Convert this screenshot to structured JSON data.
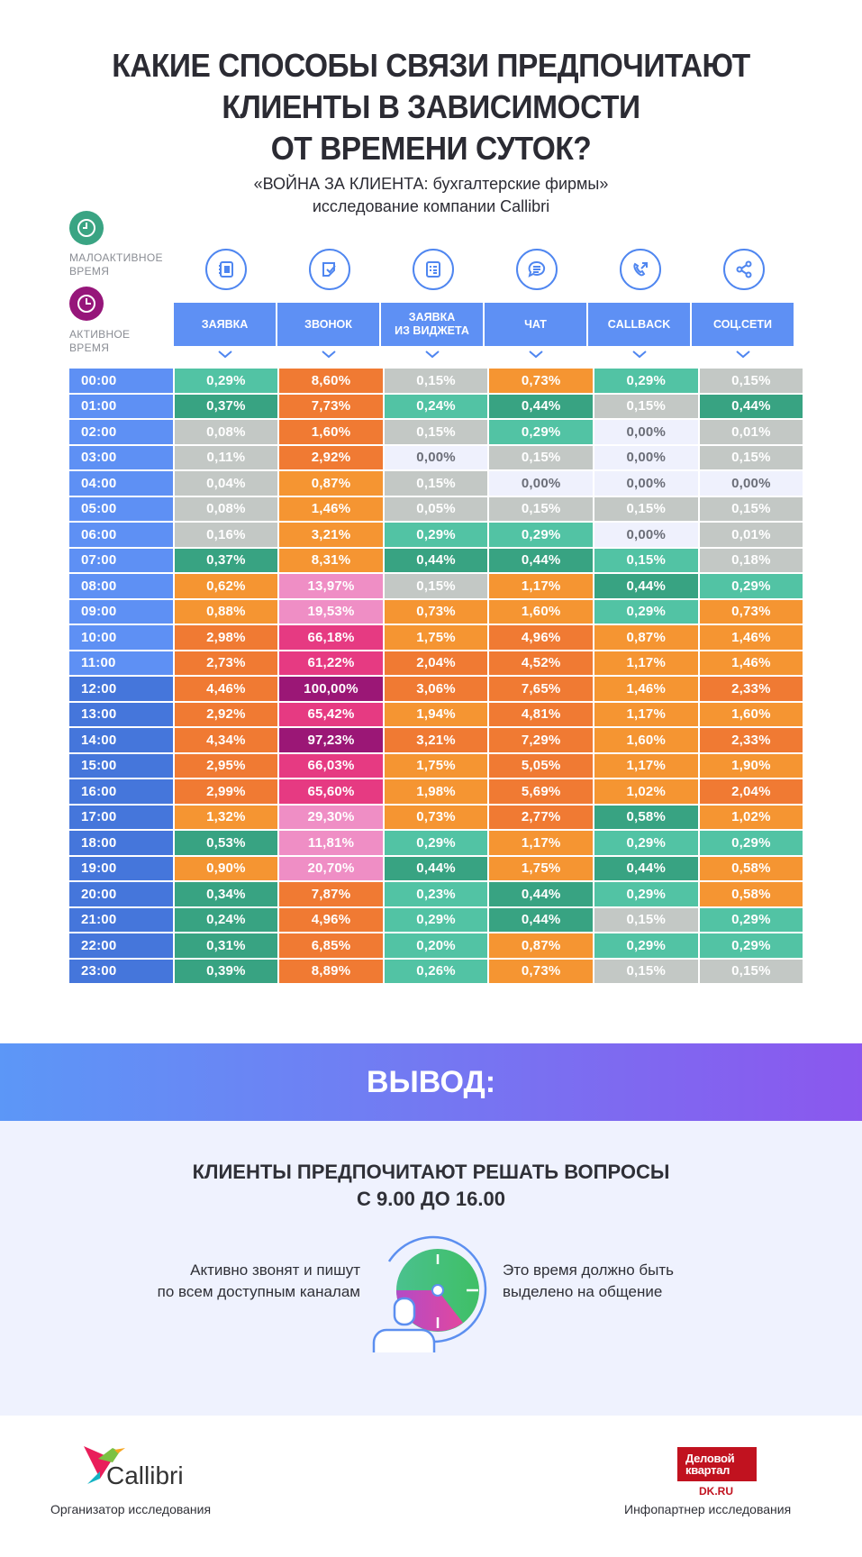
{
  "header": {
    "title_lines": [
      "КАКИЕ СПОСОБЫ СВЯЗИ ПРЕДПОЧИТАЮТ",
      "КЛИЕНТЫ  В ЗАВИСИМОСТИ",
      "ОТ ВРЕМЕНИ СУТОК?"
    ],
    "subtitle_lines": [
      "«ВОЙНА ЗА КЛИЕНТА: бухгалтерские фирмы»",
      "исследование компании Callibri"
    ]
  },
  "legend": {
    "low": {
      "label_lines": [
        "МАЛОАКТИВНОЕ",
        "ВРЕМЯ"
      ],
      "icon": "clock-icon",
      "color": "#3aa483"
    },
    "high": {
      "label_lines": [
        "АКТИВНОЕ",
        "ВРЕМЯ"
      ],
      "icon": "clock-icon",
      "color": "#96167a"
    }
  },
  "columns": [
    {
      "label": "ЗАЯВКА",
      "icon": "form-icon"
    },
    {
      "label": "ЗВОНОК",
      "icon": "call-note-icon"
    },
    {
      "label": "ЗАЯВКА\nИЗ ВИДЖЕТА",
      "icon": "widget-list-icon"
    },
    {
      "label": "ЧАТ",
      "icon": "chat-icon"
    },
    {
      "label": "CALLBACK",
      "icon": "callback-phone-icon"
    },
    {
      "label": "СОЦ.СЕТИ",
      "icon": "share-icon"
    }
  ],
  "colors": {
    "header_blue": "#5e90f4",
    "time_blue_light": "#5e90f4",
    "time_blue_dark": "#4576db",
    "empty": "#eff1fd",
    "gray": "#c3c8c5",
    "teal_light": "#52c3a4",
    "teal_dark": "#38a382",
    "orange_light": "#f59532",
    "orange_dark": "#f07a33",
    "pink_light": "#ef8ec5",
    "pink": "#e63a82",
    "purple": "#9b1776"
  },
  "chart_data": {
    "type": "heatmap",
    "title": "КАКИЕ СПОСОБЫ СВЯЗИ ПРЕДПОЧИТАЮТ КЛИЕНТЫ В ЗАВИСИМОСТИ ОТ ВРЕМЕНИ СУТОК?",
    "subtitle": "«ВОЙНА ЗА КЛИЕНТА: бухгалтерские фирмы» исследование компании Callibri",
    "x_categories": [
      "ЗАЯВКА",
      "ЗВОНОК",
      "ЗАЯВКА ИЗ ВИДЖЕТА",
      "ЧАТ",
      "CALLBACK",
      "СОЦ.СЕТИ"
    ],
    "y_categories": [
      "00:00",
      "01:00",
      "02:00",
      "03:00",
      "04:00",
      "05:00",
      "06:00",
      "07:00",
      "08:00",
      "09:00",
      "10:00",
      "11:00",
      "12:00",
      "13:00",
      "14:00",
      "15:00",
      "16:00",
      "17:00",
      "18:00",
      "19:00",
      "20:00",
      "21:00",
      "22:00",
      "23:00"
    ],
    "legend": [
      "МАЛОАКТИВНОЕ ВРЕМЯ",
      "АКТИВНОЕ ВРЕМЯ"
    ],
    "unit": "%",
    "rows": [
      {
        "time": "00:00",
        "values": [
          "0,29%",
          "8,60%",
          "0,15%",
          "0,73%",
          "0,29%",
          "0,15%"
        ],
        "colors": [
          "teal_light",
          "orange_dark",
          "gray",
          "orange_light",
          "teal_light",
          "gray"
        ]
      },
      {
        "time": "01:00",
        "values": [
          "0,37%",
          "7,73%",
          "0,24%",
          "0,44%",
          "0,15%",
          "0,44%"
        ],
        "colors": [
          "teal_dark",
          "orange_dark",
          "teal_light",
          "teal_dark",
          "gray",
          "teal_dark"
        ]
      },
      {
        "time": "02:00",
        "values": [
          "0,08%",
          "1,60%",
          "0,15%",
          "0,29%",
          "0,00%",
          "0,01%"
        ],
        "colors": [
          "gray",
          "orange_dark",
          "gray",
          "teal_light",
          "empty",
          "gray"
        ]
      },
      {
        "time": "03:00",
        "values": [
          "0,11%",
          "2,92%",
          "0,00%",
          "0,15%",
          "0,00%",
          "0,15%"
        ],
        "colors": [
          "gray",
          "orange_dark",
          "empty",
          "gray",
          "empty",
          "gray"
        ]
      },
      {
        "time": "04:00",
        "values": [
          "0,04%",
          "0,87%",
          "0,15%",
          "0,00%",
          "0,00%",
          "0,00%"
        ],
        "colors": [
          "gray",
          "orange_light",
          "gray",
          "empty",
          "empty",
          "empty"
        ]
      },
      {
        "time": "05:00",
        "values": [
          "0,08%",
          "1,46%",
          "0,05%",
          "0,15%",
          "0,15%",
          "0,15%"
        ],
        "colors": [
          "gray",
          "orange_light",
          "gray",
          "gray",
          "gray",
          "gray"
        ]
      },
      {
        "time": "06:00",
        "values": [
          "0,16%",
          "3,21%",
          "0,29%",
          "0,29%",
          "0,00%",
          "0,01%"
        ],
        "colors": [
          "gray",
          "orange_light",
          "teal_light",
          "teal_light",
          "empty",
          "gray"
        ]
      },
      {
        "time": "07:00",
        "values": [
          "0,37%",
          "8,31%",
          "0,44%",
          "0,44%",
          "0,15%",
          "0,18%"
        ],
        "colors": [
          "teal_dark",
          "orange_light",
          "teal_dark",
          "teal_dark",
          "teal_light",
          "gray"
        ]
      },
      {
        "time": "08:00",
        "values": [
          "0,62%",
          "13,97%",
          "0,15%",
          "1,17%",
          "0,44%",
          "0,29%"
        ],
        "colors": [
          "orange_light",
          "pink_light",
          "gray",
          "orange_light",
          "teal_dark",
          "teal_light"
        ]
      },
      {
        "time": "09:00",
        "values": [
          "0,88%",
          "19,53%",
          "0,73%",
          "1,60%",
          "0,29%",
          "0,73%"
        ],
        "colors": [
          "orange_light",
          "pink_light",
          "orange_light",
          "orange_light",
          "teal_light",
          "orange_light"
        ]
      },
      {
        "time": "10:00",
        "values": [
          "2,98%",
          "66,18%",
          "1,75%",
          "4,96%",
          "0,87%",
          "1,46%"
        ],
        "colors": [
          "orange_dark",
          "pink",
          "orange_light",
          "orange_dark",
          "orange_light",
          "orange_light"
        ]
      },
      {
        "time": "11:00",
        "values": [
          "2,73%",
          "61,22%",
          "2,04%",
          "4,52%",
          "1,17%",
          "1,46%"
        ],
        "colors": [
          "orange_dark",
          "pink",
          "orange_dark",
          "orange_dark",
          "orange_light",
          "orange_light"
        ]
      },
      {
        "time": "12:00",
        "values": [
          "4,46%",
          "100,00%",
          "3,06%",
          "7,65%",
          "1,46%",
          "2,33%"
        ],
        "colors": [
          "orange_dark",
          "purple",
          "orange_dark",
          "orange_dark",
          "orange_light",
          "orange_dark"
        ]
      },
      {
        "time": "13:00",
        "values": [
          "2,92%",
          "65,42%",
          "1,94%",
          "4,81%",
          "1,17%",
          "1,60%"
        ],
        "colors": [
          "orange_dark",
          "pink",
          "orange_light",
          "orange_dark",
          "orange_light",
          "orange_light"
        ]
      },
      {
        "time": "14:00",
        "values": [
          "4,34%",
          "97,23%",
          "3,21%",
          "7,29%",
          "1,60%",
          "2,33%"
        ],
        "colors": [
          "orange_dark",
          "purple",
          "orange_dark",
          "orange_dark",
          "orange_light",
          "orange_dark"
        ]
      },
      {
        "time": "15:00",
        "values": [
          "2,95%",
          "66,03%",
          "1,75%",
          "5,05%",
          "1,17%",
          "1,90%"
        ],
        "colors": [
          "orange_dark",
          "pink",
          "orange_light",
          "orange_dark",
          "orange_light",
          "orange_light"
        ]
      },
      {
        "time": "16:00",
        "values": [
          "2,99%",
          "65,60%",
          "1,98%",
          "5,69%",
          "1,02%",
          "2,04%"
        ],
        "colors": [
          "orange_dark",
          "pink",
          "orange_light",
          "orange_dark",
          "orange_light",
          "orange_dark"
        ]
      },
      {
        "time": "17:00",
        "values": [
          "1,32%",
          "29,30%",
          "0,73%",
          "2,77%",
          "0,58%",
          "1,02%"
        ],
        "colors": [
          "orange_light",
          "pink_light",
          "orange_light",
          "orange_dark",
          "teal_dark",
          "orange_light"
        ]
      },
      {
        "time": "18:00",
        "values": [
          "0,53%",
          "11,81%",
          "0,29%",
          "1,17%",
          "0,29%",
          "0,29%"
        ],
        "colors": [
          "teal_dark",
          "pink_light",
          "teal_light",
          "orange_light",
          "teal_light",
          "teal_light"
        ]
      },
      {
        "time": "19:00",
        "values": [
          "0,90%",
          "20,70%",
          "0,44%",
          "1,75%",
          "0,44%",
          "0,58%"
        ],
        "colors": [
          "orange_light",
          "pink_light",
          "teal_dark",
          "orange_light",
          "teal_dark",
          "orange_light"
        ]
      },
      {
        "time": "20:00",
        "values": [
          "0,34%",
          "7,87%",
          "0,23%",
          "0,44%",
          "0,29%",
          "0,58%"
        ],
        "colors": [
          "teal_dark",
          "orange_dark",
          "teal_light",
          "teal_dark",
          "teal_light",
          "orange_light"
        ]
      },
      {
        "time": "21:00",
        "values": [
          "0,24%",
          "4,96%",
          "0,29%",
          "0,44%",
          "0,15%",
          "0,29%"
        ],
        "colors": [
          "teal_dark",
          "orange_dark",
          "teal_light",
          "teal_dark",
          "gray",
          "teal_light"
        ]
      },
      {
        "time": "22:00",
        "values": [
          "0,31%",
          "6,85%",
          "0,20%",
          "0,87%",
          "0,29%",
          "0,29%"
        ],
        "colors": [
          "teal_dark",
          "orange_dark",
          "teal_light",
          "orange_light",
          "teal_light",
          "teal_light"
        ]
      },
      {
        "time": "23:00",
        "values": [
          "0,39%",
          "8,89%",
          "0,26%",
          "0,73%",
          "0,15%",
          "0,15%"
        ],
        "colors": [
          "teal_dark",
          "orange_dark",
          "teal_light",
          "orange_light",
          "gray",
          "gray"
        ]
      }
    ],
    "series": [
      {
        "name": "ЗАЯВКА",
        "values": [
          0.29,
          0.37,
          0.08,
          0.11,
          0.04,
          0.08,
          0.16,
          0.37,
          0.62,
          0.88,
          2.98,
          2.73,
          4.46,
          2.92,
          4.34,
          2.95,
          2.99,
          1.32,
          0.53,
          0.9,
          0.34,
          0.24,
          0.31,
          0.39
        ]
      },
      {
        "name": "ЗВОНОК",
        "values": [
          8.6,
          7.73,
          1.6,
          2.92,
          0.87,
          1.46,
          3.21,
          8.31,
          13.97,
          19.53,
          66.18,
          61.22,
          100.0,
          65.42,
          97.23,
          66.03,
          65.6,
          29.3,
          11.81,
          20.7,
          7.87,
          4.96,
          6.85,
          8.89
        ]
      },
      {
        "name": "ЗАЯВКА ИЗ ВИДЖЕТА",
        "values": [
          0.15,
          0.24,
          0.15,
          0.0,
          0.15,
          0.05,
          0.29,
          0.44,
          0.15,
          0.73,
          1.75,
          2.04,
          3.06,
          1.94,
          3.21,
          1.75,
          1.98,
          0.73,
          0.29,
          0.44,
          0.23,
          0.29,
          0.2,
          0.26
        ]
      },
      {
        "name": "ЧАТ",
        "values": [
          0.73,
          0.44,
          0.29,
          0.15,
          0.0,
          0.15,
          0.29,
          0.44,
          1.17,
          1.6,
          4.96,
          4.52,
          7.65,
          4.81,
          7.29,
          5.05,
          5.69,
          2.77,
          1.17,
          1.75,
          0.44,
          0.44,
          0.87,
          0.73
        ]
      },
      {
        "name": "CALLBACK",
        "values": [
          0.29,
          0.15,
          0.0,
          0.0,
          0.0,
          0.15,
          0.0,
          0.15,
          0.44,
          0.29,
          0.87,
          1.17,
          1.46,
          1.17,
          1.6,
          1.17,
          1.02,
          0.58,
          0.29,
          0.44,
          0.29,
          0.15,
          0.29,
          0.15
        ]
      },
      {
        "name": "СОЦ.СЕТИ",
        "values": [
          0.15,
          0.44,
          0.01,
          0.15,
          0.0,
          0.15,
          0.01,
          0.18,
          0.29,
          0.73,
          1.46,
          1.46,
          2.33,
          1.6,
          2.33,
          1.9,
          2.04,
          1.02,
          0.29,
          0.58,
          0.58,
          0.29,
          0.29,
          0.15
        ]
      }
    ]
  },
  "conclusion": {
    "banner": "ВЫВОД:",
    "title_lines": [
      "КЛИЕНТЫ ПРЕДПОЧИТАЮТ РЕШАТЬ ВОПРОСЫ",
      "С 9.00 ДО 16.00"
    ],
    "left_text_lines": [
      "Активно звонят и пишут",
      "по всем доступным каналам"
    ],
    "right_text_lines": [
      "Это время должно быть",
      "выделено на общение"
    ],
    "icon": "person-clock-icon"
  },
  "footer": {
    "organizer": {
      "logo_text": "Callibri",
      "caption": "Организатор исследования"
    },
    "partner": {
      "logo_lines": [
        "Деловой",
        "квартал"
      ],
      "site": "DK.RU",
      "caption": "Инфопартнер исследования"
    }
  }
}
